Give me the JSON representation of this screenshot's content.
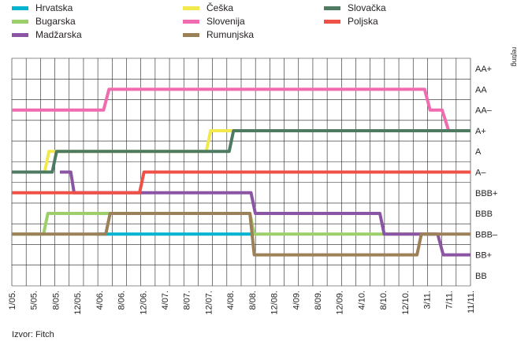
{
  "chart_data": {
    "type": "line",
    "ylabel": "rejting",
    "source": "Izvor: Fitch",
    "y_ratings": [
      "BB",
      "BB+",
      "BBB–",
      "BBB",
      "BBB+",
      "A–",
      "A",
      "A+",
      "AA–",
      "AA",
      "AA+"
    ],
    "ylim": [
      0,
      10
    ],
    "grid": true,
    "legend_position": "top",
    "x_tick_labels": [
      "1/05.",
      "5/05.",
      "8/05.",
      "12/05.",
      "4/06.",
      "8/06.",
      "12/06.",
      "4/07.",
      "8/07.",
      "12/07.",
      "4/08.",
      "8/08.",
      "12/08.",
      "4/09.",
      "8/09.",
      "12/09.",
      "4/10.",
      "8/10.",
      "12/10.",
      "3/11.",
      "7/11.",
      "11/11."
    ],
    "series": [
      {
        "name": "Hrvatska",
        "color": "#00b4cf",
        "x": [
          3.88,
          5.55,
          5.75,
          11.05
        ],
        "y": [
          2,
          2,
          2,
          2
        ]
      },
      {
        "name": "Bugarska",
        "color": "#9ccf6a",
        "x": [
          0.0,
          1.45,
          1.65,
          4.5,
          4.7,
          10.9,
          11.1,
          18.4,
          18.6,
          19.3
        ],
        "y": [
          2,
          2,
          3,
          3,
          3,
          3,
          2,
          2,
          2,
          2
        ]
      },
      {
        "name": "Madžarska",
        "color": "#8b55a4",
        "x": [
          2.2,
          2.7,
          2.85,
          5.9,
          6.1,
          10.95,
          11.15,
          16.85,
          17.05,
          19.5,
          19.75,
          21.0
        ],
        "y": [
          5,
          5,
          4,
          4,
          4,
          4,
          3,
          3,
          2,
          2,
          1,
          1
        ]
      },
      {
        "name": "Češka",
        "color": "#f2e94e",
        "x": [
          1.5,
          1.7,
          2.1,
          8.9,
          9.1,
          9.9,
          10.1
        ],
        "y": [
          5,
          6,
          6,
          6,
          7,
          7,
          7
        ]
      },
      {
        "name": "Slovenija",
        "color": "#f06bb0",
        "x": [
          0.0,
          4.2,
          4.45,
          18.9,
          19.15,
          19.7,
          20.0,
          21.0
        ],
        "y": [
          8,
          8,
          9,
          9,
          8,
          8,
          7,
          7
        ]
      },
      {
        "name": "Rumunjska",
        "color": "#9c8058",
        "x": [
          0.0,
          4.3,
          4.5,
          10.9,
          11.1,
          18.55,
          18.75,
          20.3,
          20.55,
          21.0
        ],
        "y": [
          2,
          2,
          3,
          3,
          1,
          1,
          2,
          2,
          2,
          2
        ]
      },
      {
        "name": "Slovačka",
        "color": "#4e7a62",
        "x": [
          0.0,
          1.85,
          2.05,
          9.95,
          10.15,
          21.0
        ],
        "y": [
          5,
          5,
          6,
          6,
          7,
          7
        ]
      },
      {
        "name": "Poljska",
        "color": "#ef5146",
        "x": [
          0.0,
          5.85,
          6.05,
          21.0
        ],
        "y": [
          4,
          4,
          5,
          5
        ]
      }
    ]
  }
}
